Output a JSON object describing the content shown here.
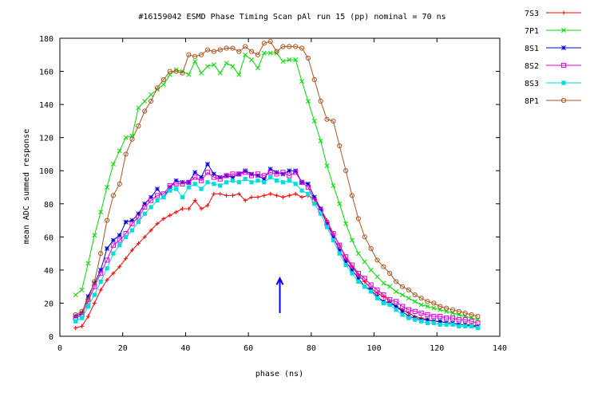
{
  "chart_data": {
    "type": "line",
    "title": "#16159042 ESMD Phase Timing Scan pAl run 15 (pp) nominal = 70 ns",
    "xlabel": "phase (ns)",
    "ylabel": "mean ADC summed response",
    "xlim": [
      0,
      140
    ],
    "ylim": [
      0,
      180
    ],
    "xticks": [
      "0",
      "20",
      "40",
      "60",
      "80",
      "100",
      "120",
      "140"
    ],
    "yticks": [
      "0",
      "20",
      "40",
      "60",
      "80",
      "100",
      "120",
      "140",
      "160",
      "180"
    ],
    "grid": false,
    "legend_position": "outside-right",
    "annotation": {
      "type": "arrow",
      "x": 70,
      "y_from": 14,
      "y_to": 35,
      "color": "#0000ff"
    },
    "x": [
      5,
      7,
      9,
      11,
      13,
      15,
      17,
      19,
      21,
      23,
      25,
      27,
      29,
      31,
      33,
      35,
      37,
      39,
      41,
      43,
      45,
      47,
      49,
      51,
      53,
      55,
      57,
      59,
      61,
      63,
      65,
      67,
      69,
      71,
      73,
      75,
      77,
      79,
      81,
      83,
      85,
      87,
      89,
      91,
      93,
      95,
      97,
      99,
      101,
      103,
      105,
      107,
      109,
      111,
      113,
      115,
      117,
      119,
      121,
      123,
      125,
      127,
      129,
      131,
      133
    ],
    "series": [
      {
        "name": "7S3",
        "color": "#ff0000",
        "marker": "plus",
        "values": [
          5,
          6,
          12,
          20,
          28,
          34,
          38,
          42,
          47,
          52,
          56,
          60,
          64,
          68,
          71,
          73,
          75,
          77,
          77,
          82,
          77,
          79,
          86,
          86,
          85,
          85,
          86,
          82,
          84,
          84,
          85,
          86,
          85,
          84,
          85,
          86,
          84,
          85,
          83,
          77,
          70,
          62,
          55,
          47,
          42,
          37,
          33,
          29,
          26,
          24,
          21,
          18,
          16,
          14,
          12,
          11,
          10,
          9,
          9,
          8,
          8,
          7,
          7,
          7,
          6
        ]
      },
      {
        "name": "7P1",
        "color": "#00dd00",
        "marker": "cross",
        "values": [
          25,
          28,
          44,
          61,
          75,
          90,
          104,
          112,
          120,
          121,
          138,
          142,
          146,
          149,
          152,
          158,
          161,
          160,
          158,
          166,
          159,
          163,
          164,
          159,
          165,
          163,
          158,
          170,
          167,
          162,
          171,
          171,
          171,
          166,
          167,
          167,
          154,
          142,
          130,
          118,
          103,
          91,
          80,
          68,
          58,
          50,
          45,
          40,
          36,
          32,
          30,
          27,
          25,
          23,
          21,
          19,
          18,
          17,
          16,
          15,
          14,
          13,
          12,
          11,
          10
        ]
      },
      {
        "name": "8S1",
        "color": "#0000dd",
        "marker": "star",
        "values": [
          12,
          14,
          24,
          32,
          40,
          53,
          58,
          61,
          69,
          70,
          74,
          80,
          84,
          89,
          84,
          90,
          94,
          93,
          93,
          99,
          96,
          104,
          98,
          96,
          97,
          96,
          98,
          100,
          98,
          97,
          95,
          101,
          99,
          98,
          100,
          100,
          93,
          92,
          84,
          77,
          68,
          60,
          52,
          45,
          40,
          35,
          30,
          28,
          24,
          21,
          20,
          18,
          15,
          12,
          11,
          10,
          10,
          9,
          9,
          8,
          8,
          7,
          7,
          6,
          6
        ]
      },
      {
        "name": "8S2",
        "color": "#dd00dd",
        "marker": "square-open",
        "values": [
          11,
          13,
          21,
          30,
          38,
          46,
          55,
          58,
          62,
          68,
          72,
          78,
          82,
          85,
          86,
          91,
          92,
          92,
          93,
          96,
          94,
          99,
          96,
          95,
          97,
          98,
          98,
          99,
          97,
          98,
          97,
          99,
          98,
          99,
          97,
          99,
          93,
          90,
          82,
          76,
          68,
          62,
          55,
          48,
          43,
          38,
          35,
          31,
          28,
          25,
          22,
          21,
          18,
          16,
          15,
          14,
          13,
          12,
          12,
          11,
          11,
          10,
          10,
          9,
          8
        ]
      },
      {
        "name": "8S3",
        "color": "#00dddd",
        "marker": "square-filled",
        "values": [
          9,
          11,
          18,
          25,
          33,
          41,
          50,
          55,
          60,
          64,
          69,
          74,
          78,
          82,
          84,
          88,
          89,
          84,
          90,
          92,
          89,
          93,
          92,
          91,
          93,
          94,
          93,
          95,
          93,
          94,
          93,
          96,
          94,
          93,
          94,
          92,
          88,
          86,
          80,
          74,
          66,
          58,
          50,
          43,
          38,
          33,
          30,
          27,
          23,
          20,
          19,
          16,
          13,
          11,
          10,
          9,
          8,
          8,
          7,
          7,
          7,
          6,
          6,
          6,
          5
        ]
      },
      {
        "name": "8P1",
        "color": "#aa5522",
        "marker": "circle-open",
        "values": [
          13,
          15,
          22,
          33,
          50,
          70,
          85,
          92,
          110,
          119,
          127,
          136,
          142,
          150,
          155,
          160,
          160,
          159,
          170,
          169,
          170,
          173,
          172,
          173,
          174,
          174,
          172,
          175,
          172,
          170,
          177,
          178,
          172,
          175,
          175,
          175,
          174,
          168,
          155,
          142,
          131,
          130,
          115,
          100,
          85,
          71,
          60,
          53,
          46,
          42,
          38,
          33,
          30,
          28,
          25,
          23,
          21,
          20,
          18,
          17,
          16,
          15,
          14,
          13,
          12
        ]
      }
    ]
  }
}
